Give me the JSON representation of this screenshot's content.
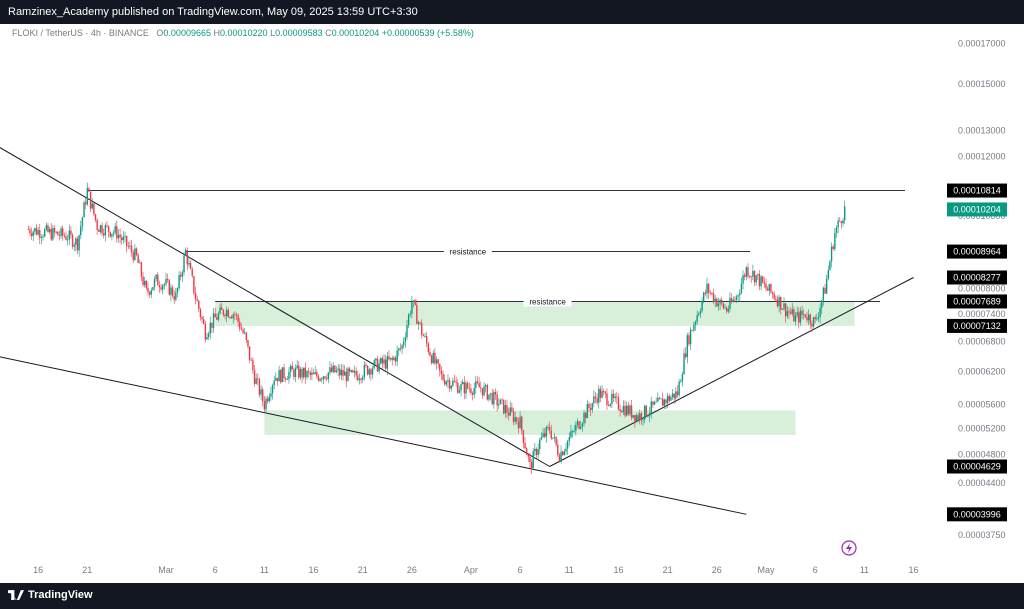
{
  "header": {
    "published_text": "Ramzinex_Academy published on TradingView.com, May 09, 2025 13:59 UTC+3:30"
  },
  "legend": {
    "symbol": "FLOKI / TetherUS · 4h · BINANCE",
    "o_label": "O",
    "o_value": "0.00009665",
    "h_label": "H",
    "h_value": "0.00010220",
    "l_label": "L",
    "l_value": "0.00009583",
    "c_label": "C",
    "c_value": "0.00010204",
    "change": "+0.00000539 (+5.58%)"
  },
  "footer": {
    "brand": "TradingView"
  },
  "colors": {
    "up": "#089981",
    "down": "#f23645",
    "zone": "#d1ecd3",
    "tag": "#000000",
    "last_tag": "#089981"
  },
  "icons": {
    "flash": "flash-icon"
  },
  "chart_data": {
    "type": "candlestick",
    "symbol": "FLOKI / TetherUS",
    "interval": "4h",
    "exchange": "BINANCE",
    "price_axis_ticks": [
      "0.00017000",
      "0.00015000",
      "0.00013000",
      "0.00012000",
      "0.00010000",
      "0.00008000",
      "0.00007400",
      "0.00006800",
      "0.00006200",
      "0.00005600",
      "0.00005200",
      "0.00004800",
      "0.00004400",
      "0.00003750"
    ],
    "time_axis_ticks": [
      "16",
      "21",
      "Mar",
      "6",
      "11",
      "16",
      "21",
      "26",
      "Apr",
      "6",
      "11",
      "16",
      "21",
      "26",
      "May",
      "6",
      "11",
      "16"
    ],
    "price_path": [
      [
        "Feb 15",
        9.6e-05
      ],
      [
        "Feb 17",
        9.5e-05
      ],
      [
        "Feb 19",
        9.4e-05
      ],
      [
        "Feb 20",
        9.2e-05
      ],
      [
        "Feb 21",
        0.00010814
      ],
      [
        "Feb 22",
        9.7e-05
      ],
      [
        "Feb 24",
        9.5e-05
      ],
      [
        "Feb 26",
        8.8e-05
      ],
      [
        "Feb 27",
        7.9e-05
      ],
      [
        "Feb 28",
        8.2e-05
      ],
      [
        "Mar 1",
        8.1e-05
      ],
      [
        "Mar 2",
        7.8e-05
      ],
      [
        "Mar 3",
        8.964e-05
      ],
      [
        "Mar 4",
        7.8e-05
      ],
      [
        "Mar 5",
        7e-05
      ],
      [
        "Mar 6",
        7.3e-05
      ],
      [
        "Mar 7",
        7.5e-05
      ],
      [
        "Mar 8",
        7.4e-05
      ],
      [
        "Mar 9",
        6.9e-05
      ],
      [
        "Mar 10",
        6.1e-05
      ],
      [
        "Mar 11",
        5.6e-05
      ],
      [
        "Mar 12",
        6.1e-05
      ],
      [
        "Mar 14",
        6.2e-05
      ],
      [
        "Mar 16",
        6.1e-05
      ],
      [
        "Mar 18",
        6.2e-05
      ],
      [
        "Mar 20",
        6.1e-05
      ],
      [
        "Mar 22",
        6.3e-05
      ],
      [
        "Mar 24",
        6.4e-05
      ],
      [
        "Mar 25",
        6.7e-05
      ],
      [
        "Mar 26",
        7.689e-05
      ],
      [
        "Mar 27",
        7e-05
      ],
      [
        "Mar 28",
        6.5e-05
      ],
      [
        "Mar 29",
        6.1e-05
      ],
      [
        "Mar 31",
        5.9e-05
      ],
      [
        "Apr 2",
        5.9e-05
      ],
      [
        "Apr 4",
        5.6e-05
      ],
      [
        "Apr 6",
        5.3e-05
      ],
      [
        "Apr 7",
        4.629e-05
      ],
      [
        "Apr 8",
        5e-05
      ],
      [
        "Apr 9",
        5.2e-05
      ],
      [
        "Apr 10",
        4.8e-05
      ],
      [
        "Apr 12",
        5.3e-05
      ],
      [
        "Apr 14",
        5.8e-05
      ],
      [
        "Apr 16",
        5.6e-05
      ],
      [
        "Apr 18",
        5.4e-05
      ],
      [
        "Apr 20",
        5.6e-05
      ],
      [
        "Apr 22",
        5.8e-05
      ],
      [
        "Apr 23",
        6.8e-05
      ],
      [
        "Apr 24",
        7.4e-05
      ],
      [
        "Apr 25",
        8e-05
      ],
      [
        "Apr 26",
        7.7e-05
      ],
      [
        "Apr 27",
        7.5e-05
      ],
      [
        "Apr 28",
        7.8e-05
      ],
      [
        "Apr 29",
        8.5e-05
      ],
      [
        "Apr 30",
        8.3e-05
      ],
      [
        "May 1",
        8e-05
      ],
      [
        "May 2",
        7.8e-05
      ],
      [
        "May 3",
        7.5e-05
      ],
      [
        "May 4",
        7.3e-05
      ],
      [
        "May 5",
        7.4e-05
      ],
      [
        "May 6",
        7.2e-05
      ],
      [
        "May 7",
        8e-05
      ],
      [
        "May 8",
        9.5e-05
      ],
      [
        "May 9",
        0.00010204
      ]
    ],
    "horizontal_lines": [
      {
        "price": 0.00010814
      },
      {
        "price": 8.964e-05,
        "label": "resistance"
      },
      {
        "price": 7.689e-05,
        "label": "resistance"
      }
    ],
    "zones": [
      {
        "from": "Mar 6",
        "to": "May 10",
        "low": 7.132e-05,
        "high": 7.689e-05
      },
      {
        "from": "Mar 11",
        "to": "May 4",
        "low": 5.1e-05,
        "high": 5.5e-05
      }
    ],
    "trendlines": [
      {
        "from": [
          "Feb 7",
          0.000135
        ],
        "to": [
          "Apr 9",
          4.629e-05
        ]
      },
      {
        "from": [
          "Feb 7",
          6.7e-05
        ],
        "to": [
          "Apr 29",
          3.996e-05
        ]
      },
      {
        "from": [
          "Apr 9",
          4.629e-05
        ],
        "to": [
          "May 16",
          8.277e-05
        ]
      }
    ],
    "price_tags": [
      "0.00010814",
      "0.00010204",
      "0.00008964",
      "0.00008277",
      "0.00007689",
      "0.00007132",
      "0.00004629",
      "0.00003996"
    ],
    "last_price": "0.00010204",
    "resistance_label": "resistance"
  }
}
